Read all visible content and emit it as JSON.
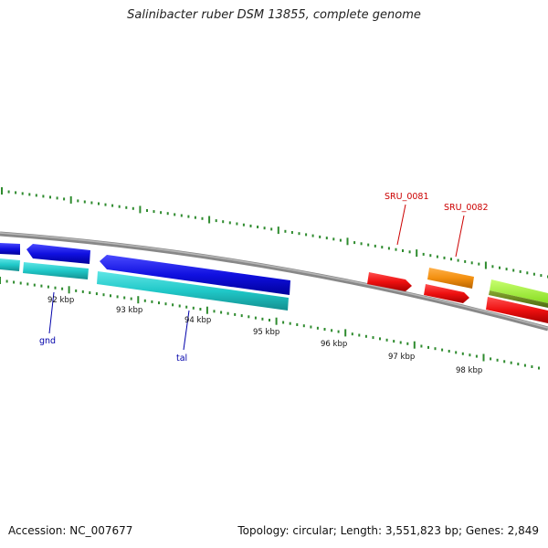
{
  "title": "Salinibacter ruber DSM 13855, complete genome",
  "footer": {
    "accession": "Accession: NC_007677",
    "summary": "Topology: circular; Length: 3,551,823 bp; Genes: 2,849"
  },
  "colors": {
    "backbone": "#8a8a8a",
    "tick": "#2e8b2e",
    "blue_gene": "#1010e0",
    "cyan_gene": "#20c8c8",
    "red_gene": "#ee1010",
    "orange_gene": "#f39010",
    "lime_gene": "#99ee33",
    "olive_gene": "#6a8a1a",
    "label_blue": "#0000aa",
    "label_red": "#cc0000"
  },
  "scale_labels": [
    "92 kbp",
    "93 kbp",
    "94 kbp",
    "95 kbp",
    "96 kbp",
    "97 kbp",
    "98 kbp"
  ],
  "gene_labels": [
    {
      "name": "gnd"
    },
    {
      "name": "tal"
    },
    {
      "name": "SRU_0081"
    },
    {
      "name": "SRU_0082"
    }
  ]
}
